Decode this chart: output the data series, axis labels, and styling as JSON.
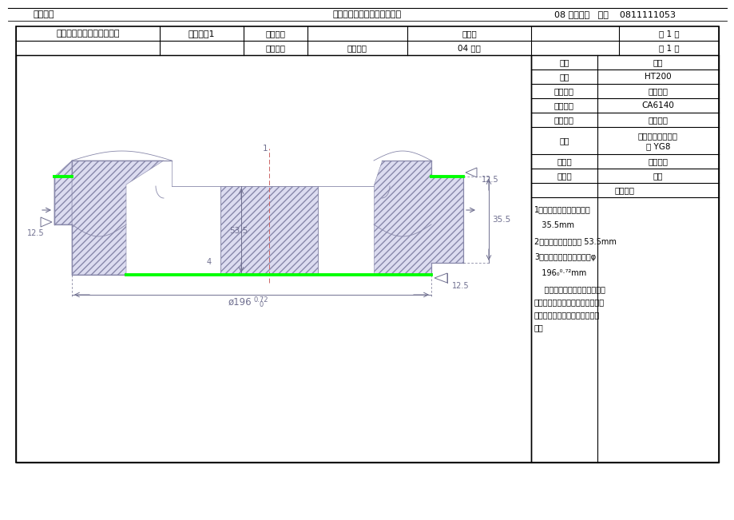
{
  "title_left": "华侨大学",
  "title_center": "《机械制造工艺学》课程设计",
  "title_right": "08 机电一班   张册    0811111053",
  "col1_row1": "华侨大学机电及自动化学院",
  "col2_row1": "工艺附图1",
  "col3_row1": "零件图号",
  "col4_row1": "",
  "col5_row1": "工序号",
  "col6_row1": "",
  "col7_row1": "第 1 页",
  "col3_row2": "零件名称",
  "col4_row2": "主轴承盖",
  "col5_row2": "04 粗车",
  "col6_row2": "",
  "col7_row2": "共 1 页",
  "right_labels": [
    "车间",
    "材料",
    "机床名称",
    "机床型号",
    "夹具名称",
    "刀具",
    "上工序",
    "下工序",
    "工序内容"
  ],
  "right_values": [
    "金工",
    "HT200",
    "普通车床",
    "CA6140",
    "专用夹具",
    "端面车刀、外圆车\n刀 YG8",
    "清洗检查",
    "粗车",
    ""
  ],
  "process_lines": [
    "1、粗车飞边后端面至尺寸",
    "   35.5mm",
    "2、粗车后端面至尺寸 53.5mm",
    "3、粗车肋板外圆面至尺寸φ",
    "   196₀⁰·⁷²mm",
    "    使用专用夹具（长销小平面组",
    "合），通过定位保证肋板外圆面的",
    "同轴度和飞边后端面的垂直度要",
    "求。"
  ],
  "bg_color": "#ffffff",
  "lc": "#000000",
  "dc": "#8888aa",
  "gc": "#00ff00",
  "dimc": "#707090",
  "redc": "#cc6666"
}
